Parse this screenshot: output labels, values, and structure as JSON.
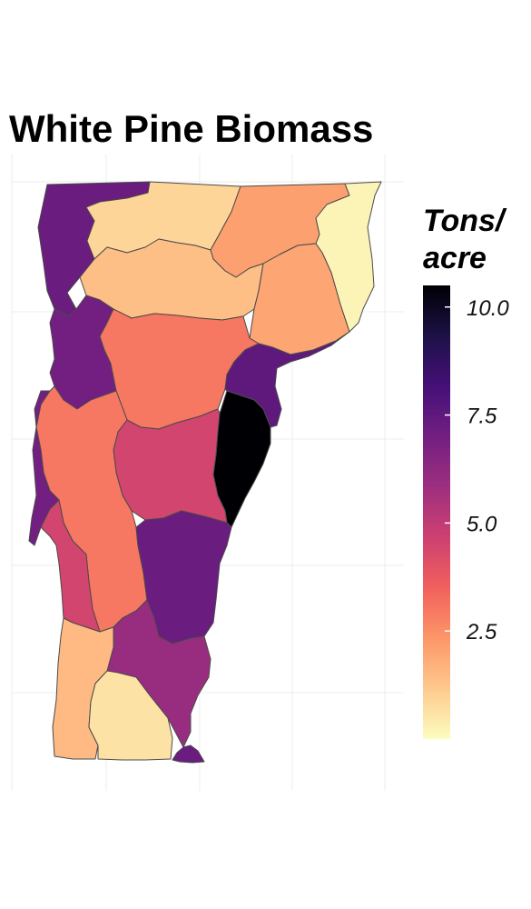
{
  "title": "White Pine Biomass",
  "legend": {
    "title_lines": [
      "Tons/",
      "acre"
    ],
    "min": 0,
    "max": 10.5,
    "ticks": [
      {
        "value": 2.5,
        "label": "2.5"
      },
      {
        "value": 5.0,
        "label": "5.0"
      },
      {
        "value": 7.5,
        "label": "7.5"
      },
      {
        "value": 10.0,
        "label": "10.0"
      }
    ],
    "colormap": "magma",
    "stops": [
      "#fcfdbf",
      "#fec98d",
      "#fd9668",
      "#f1605d",
      "#cd4071",
      "#9e2f7f",
      "#721f81",
      "#451077",
      "#1d1147",
      "#000004"
    ]
  },
  "chart_data": {
    "type": "choropleth",
    "title": "White Pine Biomass",
    "legend_title": "Tons/ acre",
    "scale": {
      "range": [
        0,
        10.5
      ],
      "ticks": [
        2.5,
        5.0,
        7.5,
        10.0
      ],
      "palette": "magma (reversed, light = low)"
    },
    "regions": [
      {
        "id": "nw-lake",
        "value": 7.2
      },
      {
        "id": "north-central",
        "value": 0.9
      },
      {
        "id": "northeast",
        "value": 2.1
      },
      {
        "id": "far-northeast",
        "value": 0.2
      },
      {
        "id": "north-interior",
        "value": 1.4
      },
      {
        "id": "east-central",
        "value": 2.0
      },
      {
        "id": "west-lake",
        "value": 7.0
      },
      {
        "id": "central",
        "value": 3.0
      },
      {
        "id": "east-river",
        "value": 7.5
      },
      {
        "id": "east-black",
        "value": 10.5
      },
      {
        "id": "central-south",
        "value": 4.5
      },
      {
        "id": "west-central",
        "value": 3.0
      },
      {
        "id": "west-lake-strip",
        "value": 7.0
      },
      {
        "id": "west-south",
        "value": 4.5
      },
      {
        "id": "southeast",
        "value": 7.2
      },
      {
        "id": "south-central",
        "value": 6.0
      },
      {
        "id": "southwest",
        "value": 1.5
      },
      {
        "id": "south",
        "value": 0.6
      },
      {
        "id": "south-tip",
        "value": 7.2
      }
    ]
  }
}
